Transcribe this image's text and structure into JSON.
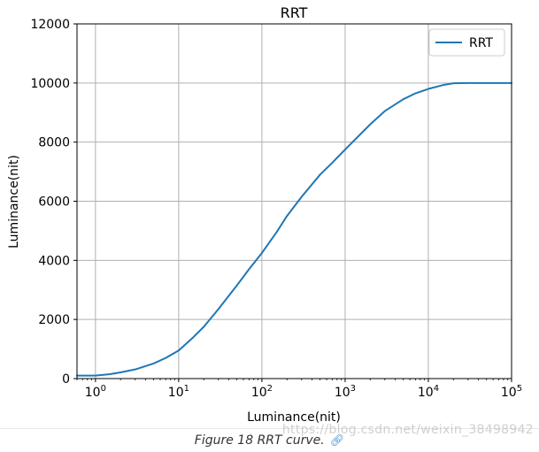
{
  "chart_data": {
    "type": "line",
    "title": "RRT",
    "xlabel": "Luminance(nit)",
    "ylabel": "Luminance(nit)",
    "x_scale": "log",
    "xlim": [
      0.6,
      100000
    ],
    "ylim": [
      0,
      12000
    ],
    "grid": true,
    "legend_position": "top-right",
    "x_ticks": [
      1,
      10,
      100,
      1000,
      10000,
      100000
    ],
    "x_tick_labels": [
      {
        "base": "10",
        "exp": "0"
      },
      {
        "base": "10",
        "exp": "1"
      },
      {
        "base": "10",
        "exp": "2"
      },
      {
        "base": "10",
        "exp": "3"
      },
      {
        "base": "10",
        "exp": "4"
      },
      {
        "base": "10",
        "exp": "5"
      }
    ],
    "y_ticks": [
      0,
      2000,
      4000,
      6000,
      8000,
      10000,
      12000
    ],
    "y_tick_labels": [
      "0",
      "2000",
      "4000",
      "6000",
      "8000",
      "10000",
      "12000"
    ],
    "series": [
      {
        "name": "RRT",
        "color": "#1f77b4",
        "x": [
          0.6,
          1,
          1.5,
          2,
          3,
          5,
          7,
          10,
          15,
          20,
          30,
          50,
          70,
          100,
          150,
          200,
          300,
          500,
          700,
          1000,
          2000,
          3000,
          5000,
          7000,
          10000,
          15000,
          20000,
          30000,
          50000,
          100000
        ],
        "y": [
          100,
          100,
          150,
          210,
          310,
          510,
          700,
          950,
          1400,
          1750,
          2350,
          3150,
          3700,
          4250,
          4950,
          5500,
          6150,
          6900,
          7300,
          7750,
          8600,
          9050,
          9450,
          9650,
          9800,
          9930,
          9990,
          10000,
          10000,
          10000
        ]
      }
    ]
  },
  "caption": {
    "text": "Figure 18 RRT curve.",
    "link_icon": "link-icon"
  },
  "watermark": "https://blog.csdn.net/weixin_38498942"
}
